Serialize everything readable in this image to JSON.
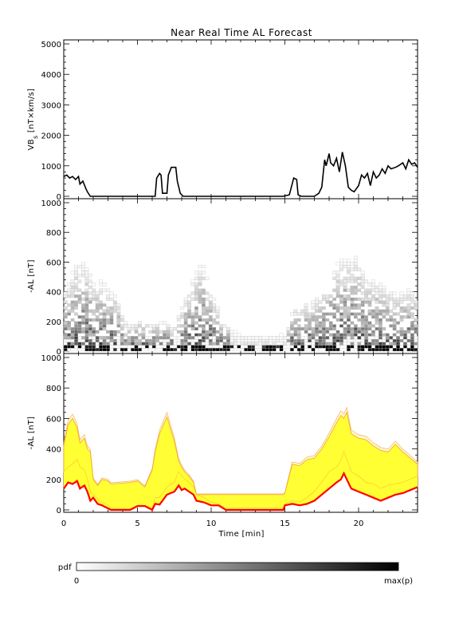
{
  "chart_data": {
    "title": "Near Real Time AL Forecast",
    "x_axis": {
      "label": "Time [min]",
      "range": [
        0,
        24
      ],
      "ticks": [
        0,
        5,
        10,
        15,
        20
      ]
    },
    "panels": [
      {
        "id": "vbs",
        "type": "line",
        "ylabel": "VB",
        "ylabel_sub": "s",
        "ylabel_suffix": " [nT×km/s]",
        "ylim": [
          0,
          5000
        ],
        "yticks": [
          0,
          1000,
          2000,
          3000,
          4000,
          5000
        ],
        "series": [
          {
            "x": [
              0,
              0.2,
              0.4,
              0.6,
              0.8,
              1.0,
              1.1,
              1.3,
              1.5,
              1.6,
              1.8,
              2.0,
              5.0,
              6.2,
              6.3,
              6.5,
              6.6,
              6.7,
              7.0,
              7.1,
              7.3,
              7.6,
              7.7,
              7.9,
              8.1,
              8.3,
              10.0,
              14.9,
              15.3,
              15.6,
              15.8,
              15.9,
              16.1,
              16.4,
              17.0,
              17.3,
              17.5,
              17.7,
              17.8,
              18.0,
              18.1,
              18.3,
              18.5,
              18.7,
              18.9,
              19.1,
              19.3,
              19.5,
              19.7,
              20.0,
              20.2,
              20.4,
              20.6,
              20.8,
              21.0,
              21.2,
              21.4,
              21.6,
              21.8,
              22.0,
              22.2,
              22.5,
              22.7,
              23.0,
              23.2,
              23.4,
              23.6,
              23.8,
              24.0
            ],
            "y": [
              650,
              700,
              600,
              650,
              550,
              650,
              400,
              500,
              250,
              150,
              0,
              0,
              0,
              0,
              600,
              750,
              700,
              100,
              100,
              700,
              950,
              950,
              500,
              100,
              0,
              0,
              0,
              0,
              50,
              600,
              550,
              50,
              0,
              0,
              0,
              100,
              300,
              1200,
              1000,
              1400,
              1100,
              1000,
              1250,
              800,
              1450,
              1000,
              300,
              200,
              150,
              350,
              700,
              600,
              750,
              350,
              800,
              600,
              700,
              900,
              750,
              1000,
              900,
              950,
              1000,
              1100,
              900,
              1200,
              1050,
              1100,
              950
            ]
          }
        ]
      },
      {
        "id": "al-pdf",
        "type": "heatmap",
        "ylabel": "-AL [nT]",
        "ylim": [
          0,
          1000
        ],
        "yticks": [
          0,
          200,
          400,
          600,
          800,
          1000
        ],
        "envelope_min": [
          60,
          60,
          60,
          60,
          60,
          60,
          60,
          60,
          60,
          60,
          60,
          60,
          60,
          60,
          60,
          60,
          60,
          60,
          60,
          60,
          60,
          60,
          60,
          60,
          60,
          60,
          60,
          60,
          60,
          60,
          60,
          60,
          60,
          60,
          60,
          60,
          60,
          60,
          60,
          60,
          60,
          60,
          60,
          60,
          60,
          60,
          60,
          60,
          60,
          60
        ],
        "envelope_max": [
          420,
          560,
          600,
          540,
          440,
          470,
          400,
          380,
          200,
          160,
          200,
          190,
          170,
          180,
          190,
          150,
          260,
          380,
          500,
          610,
          450,
          320,
          180,
          150,
          110,
          100,
          90,
          100,
          100,
          100,
          100,
          110,
          300,
          290,
          330,
          340,
          400,
          480,
          570,
          620,
          600,
          640,
          500,
          470,
          460,
          420,
          390,
          380,
          430,
          380
        ]
      },
      {
        "id": "al-forecast",
        "type": "area",
        "ylabel": "-AL [nT]",
        "ylim": [
          0,
          1000
        ],
        "yticks": [
          0,
          200,
          400,
          600,
          800,
          1000
        ],
        "series": [
          {
            "name": "",
            "x": [
              0,
              0.3,
              0.6,
              0.9,
              1.1,
              1.4,
              1.6,
              1.8,
              2.0,
              2.3,
              2.6,
              3.0,
              3.2,
              4.5,
              5.0,
              5.5,
              6.0,
              6.2,
              6.5,
              7.0,
              7.5,
              7.8,
              8.0,
              8.2,
              8.5,
              8.8,
              9.0,
              9.5,
              10.0,
              10.5,
              11.0,
              11.2,
              14.9,
              15.0,
              15.5,
              16.0,
              16.5,
              17.0,
              17.5,
              18.0,
              18.5,
              18.8,
              19.0,
              19.2,
              19.5,
              20.0,
              20.5,
              21.0,
              21.5,
              22.0,
              22.5,
              23.0,
              23.5,
              24.0
            ],
            "median": [
              140,
              180,
              170,
              190,
              140,
              160,
              120,
              60,
              80,
              40,
              30,
              10,
              0,
              0,
              25,
              25,
              0,
              40,
              35,
              100,
              120,
              160,
              130,
              140,
              120,
              100,
              60,
              50,
              30,
              30,
              0,
              0,
              0,
              30,
              40,
              30,
              40,
              60,
              100,
              140,
              180,
              200,
              240,
              200,
              140,
              120,
              100,
              80,
              60,
              80,
              100,
              110,
              130,
              150
            ],
            "band_low": [
              250,
              280,
              300,
              330,
              280,
              260,
              200,
              120,
              100,
              70,
              50,
              30,
              10,
              5,
              30,
              30,
              10,
              80,
              80,
              150,
              180,
              250,
              220,
              200,
              180,
              150,
              100,
              80,
              50,
              40,
              10,
              10,
              10,
              40,
              60,
              50,
              80,
              120,
              180,
              250,
              280,
              320,
              380,
              330,
              250,
              220,
              180,
              170,
              140,
              160,
              170,
              180,
              200,
              220
            ],
            "band_high": [
              420,
              560,
              600,
              540,
              440,
              470,
              400,
              380,
              200,
              160,
              200,
              190,
              170,
              180,
              190,
              150,
              260,
              380,
              500,
              610,
              450,
              320,
              280,
              250,
              220,
              180,
              100,
              100,
              100,
              100,
              100,
              100,
              100,
              110,
              300,
              290,
              330,
              340,
              400,
              480,
              570,
              620,
              600,
              640,
              500,
              470,
              460,
              420,
              390,
              380,
              430,
              380,
              340,
              300
            ]
          }
        ]
      }
    ],
    "colorbar": {
      "label": "pdf",
      "min_label": "0",
      "max_label": "max(p)",
      "from_color": "#ffffff",
      "to_color": "#000000"
    },
    "colors": {
      "median": "#ff0000",
      "band_fill": "#ffff33",
      "band_edge": "#f2a233",
      "outer_band": "#fff7c8",
      "heat": "#000000"
    }
  }
}
